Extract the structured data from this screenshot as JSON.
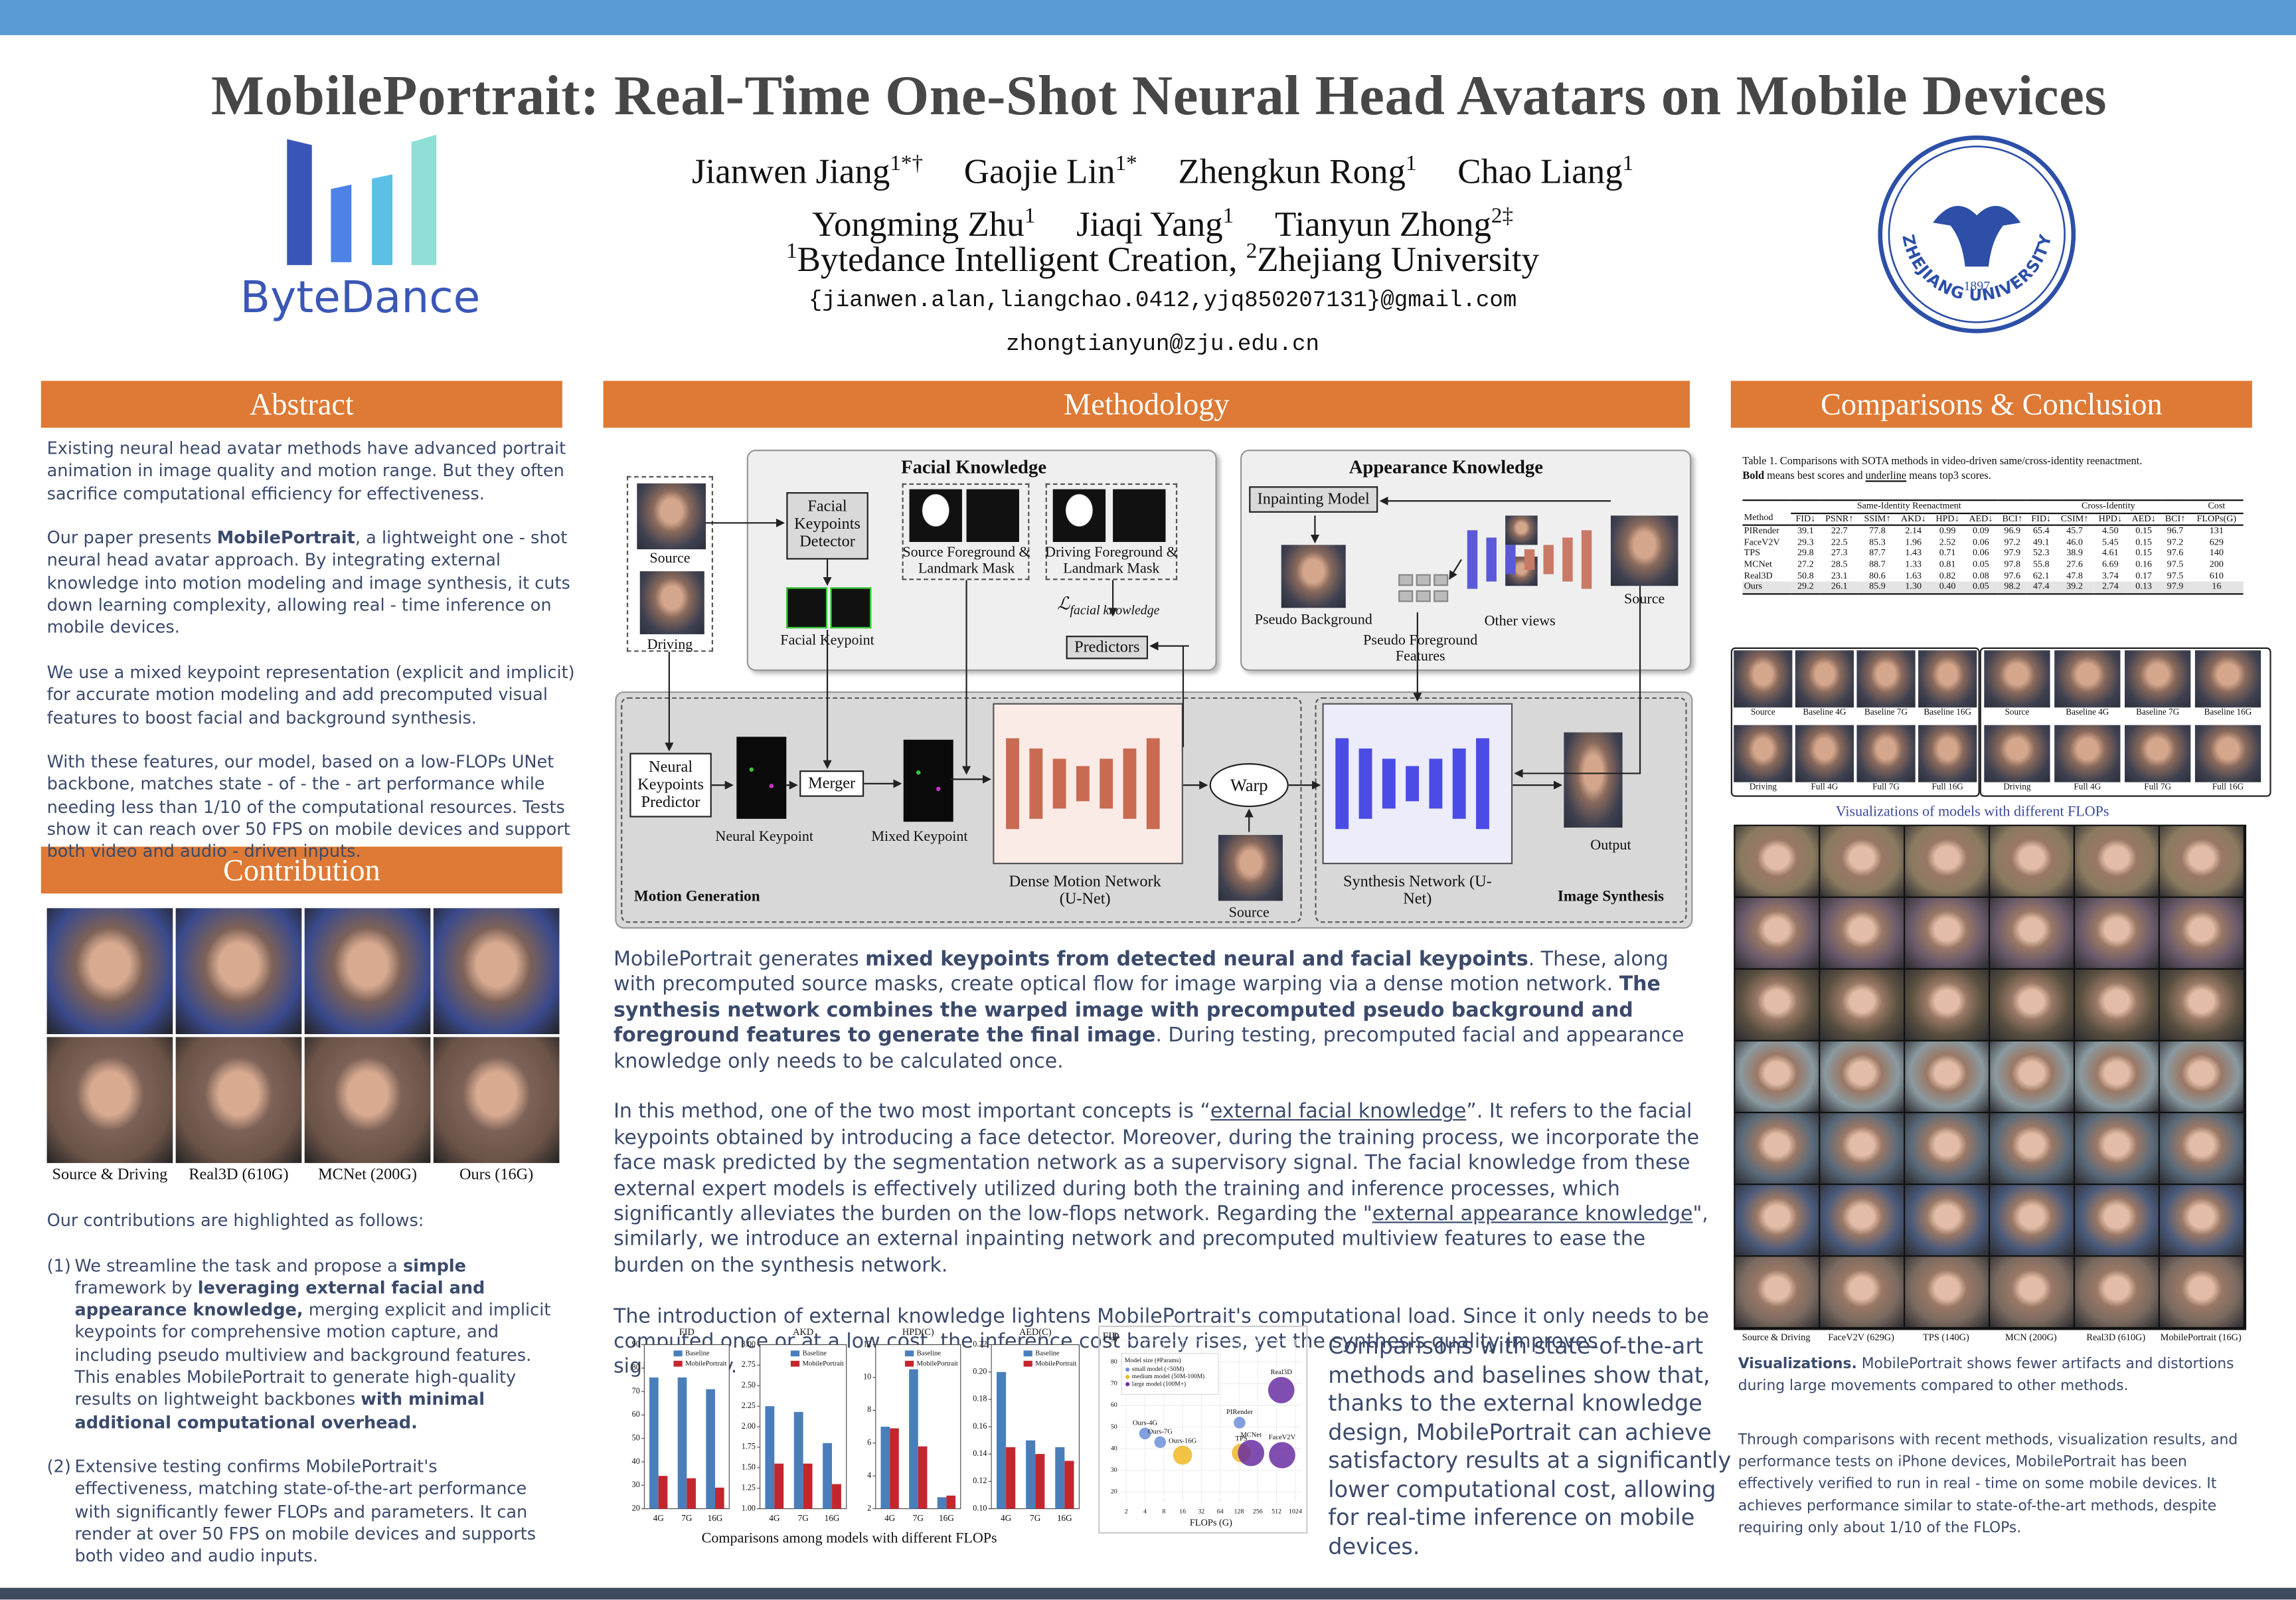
{
  "header": {
    "title": "MobilePortrait: Real-Time One-Shot Neural Head Avatars on Mobile Devices",
    "author_lines": [
      [
        {
          "name": "Jianwen Jiang",
          "sup": "1*†"
        },
        {
          "name": "Gaojie Lin",
          "sup": "1*"
        },
        {
          "name": "Zhengkun Rong",
          "sup": "1"
        },
        {
          "name": "Chao Liang",
          "sup": "1"
        }
      ],
      [
        {
          "name": "Yongming Zhu",
          "sup": "1"
        },
        {
          "name": "Jiaqi Yang",
          "sup": "1"
        },
        {
          "name": "Tianyun Zhong",
          "sup": "2‡"
        }
      ]
    ],
    "affiliations": [
      {
        "sup": "1",
        "text": "Bytedance Intelligent Creation,"
      },
      {
        "sup": "2",
        "text": "Zhejiang University"
      }
    ],
    "emails": [
      "{jianwen.alan,liangchao.0412,yjq850207131}@gmail.com",
      "zhongtianyun@zju.edu.cn"
    ]
  },
  "logos": {
    "bytedance": "ByteDance",
    "zju_year": "1897",
    "zju_name": "ZHEJIANG UNIVERSITY"
  },
  "abstract": {
    "heading": "Abstract",
    "paragraphs": [
      [
        "Existing neural head avatar methods have advanced portrait animation in image quality and motion range. But they often sacrifice computational efficiency for effectiveness."
      ],
      [
        "Our paper presents ",
        {
          "bold": "MobilePortrait"
        },
        ", a lightweight one - shot neural head avatar approach. By integrating external knowledge into motion modeling and image synthesis, it cuts down learning complexity, allowing real - time inference on mobile devices."
      ],
      [
        " We use a mixed keypoint representation (explicit and implicit) for accurate motion modeling and add precomputed visual features to boost facial and background synthesis."
      ],
      [
        "With these features, our model, based on a low-FLOPs UNet backbone, matches state - of - the - art performance while needing less than 1/10 of the computational resources. Tests show it can reach over 50 FPS on mobile devices and support both video and audio - driven inputs."
      ]
    ]
  },
  "contribution": {
    "heading": "Contribution",
    "image_labels": [
      "Source & Driving",
      "Real3D (610G)",
      "MCNet (200G)",
      "Ours (16G)"
    ],
    "intro": "Our contributions are highlighted as follows:",
    "items": [
      {
        "number": "(1)",
        "runs": [
          "We streamline the task and propose a ",
          {
            "bold": "simple"
          },
          " framework by ",
          {
            "bold": "leveraging external facial and appearance knowledge,"
          },
          " merging explicit and implicit keypoints for comprehensive motion capture, and including pseudo multiview and background features. This enables MobilePortrait to generate high-quality results on lightweight backbones ",
          {
            "bold": "with minimal additional computational overhead."
          }
        ]
      },
      {
        "number": "(2)",
        "runs": [
          "Extensive testing confirms MobilePortrait's effectiveness, matching state-of-the-art performance with significantly fewer FLOPs and parameters. It can render at over 50 FPS on mobile devices and supports both video and audio inputs."
        ]
      }
    ]
  },
  "methodology": {
    "heading": "Methodology",
    "diagram": {
      "facial_knowledge": "Facial Knowledge",
      "appearance_knowledge": "Appearance Knowledge",
      "source": "Source",
      "driving": "Driving",
      "facial_keypoints_detector": "Facial Keypoints Detector",
      "source_mask": "Source Foreground & Landmark Mask",
      "driving_mask": "Driving Foreground & Landmark Mask",
      "facial_keypoint": "Facial Keypoint",
      "loss": "ℒ",
      "loss_sub": "facial knowledge",
      "predictors": "Predictors",
      "inpainting_model": "Inpainting Model",
      "pseudo_background": "Pseudo Background",
      "pseudo_foreground": "Pseudo Foreground Features",
      "other_views": "Other views",
      "appearance_source": "Source",
      "neural_keypoints_predictor": "Neural Keypoints Predictor",
      "neural_keypoint": "Neural Keypoint",
      "merger": "Merger",
      "mixed_keypoint": "Mixed Keypoint",
      "dense_motion_network": "Dense Motion Network (U-Net)",
      "warp": "Warp",
      "warp_source": "Source",
      "synthesis_network": "Synthesis Network (U-Net)",
      "output": "Output",
      "motion_generation": "Motion Generation",
      "image_synthesis": "Image Synthesis"
    },
    "paragraphs": [
      [
        "MobilePortrait generates ",
        {
          "bold": "mixed keypoints from detected neural and facial keypoints"
        },
        ". These, along with precomputed source masks, create optical flow for image warping via a dense motion network. ",
        {
          "bold": "The synthesis network combines the warped image with precomputed pseudo background and foreground features to generate the final image"
        },
        ". During testing, precomputed facial and appearance knowledge only needs to be calculated once."
      ],
      [
        "In this method, one of the two most important concepts is “",
        {
          "underline": "external facial knowledge"
        },
        "”. It refers to the facial keypoints obtained by introducing a face detector. Moreover, during the training process, we incorporate the face mask predicted by the segmentation network as a supervisory signal. The facial knowledge from these external expert models is effectively utilized during both the training and inference processes, which significantly alleviates the burden on the low-flops network. Regarding the \"",
        {
          "underline": "external appearance knowledge"
        },
        "\", similarly, we introduce an external inpainting network and precomputed multiview features to ease the burden on the synthesis network."
      ],
      [
        "The introduction of external knowledge lightens MobilePortrait's computational load. Since it only needs to be computed once or at a low cost, the inference cost barely rises, yet the synthesis quality improves significantly."
      ]
    ],
    "chart_data": [
      {
        "type": "bar",
        "title": "FID",
        "categories": [
          "4G",
          "7G",
          "16G"
        ],
        "series": [
          {
            "name": "Baseline",
            "color": "#4a7ebb",
            "values": [
              76,
              76,
              71
            ]
          },
          {
            "name": "MobilePortrait",
            "color": "#c4262e",
            "values": [
              34,
              33,
              29
            ]
          }
        ],
        "ylim": [
          20,
          90
        ],
        "yticks": [
          20,
          30,
          40,
          50,
          60,
          70,
          80,
          90
        ]
      },
      {
        "type": "bar",
        "title": "AKD",
        "categories": [
          "4G",
          "7G",
          "16G"
        ],
        "series": [
          {
            "name": "Baseline",
            "color": "#4a7ebb",
            "values": [
              2.25,
              2.18,
              1.8
            ]
          },
          {
            "name": "MobilePortrait",
            "color": "#c4262e",
            "values": [
              1.55,
              1.55,
              1.3
            ]
          }
        ],
        "ylim": [
          1,
          3
        ],
        "yticks": [
          {
            "value": 1,
            "label": "1.00"
          },
          {
            "value": 1.25,
            "label": "1.25"
          },
          {
            "value": 1.5,
            "label": "1.50"
          },
          {
            "value": 1.75,
            "label": "1.75"
          },
          {
            "value": 2,
            "label": "2.00"
          },
          {
            "value": 2.25,
            "label": "2.25"
          },
          {
            "value": 2.5,
            "label": "2.50"
          },
          {
            "value": 2.75,
            "label": "2.75"
          },
          {
            "value": 3,
            "label": "3.00"
          }
        ]
      },
      {
        "type": "bar",
        "title": "HPD(C)",
        "categories": [
          "4G",
          "7G",
          "16G"
        ],
        "series": [
          {
            "name": "Baseline",
            "color": "#4a7ebb",
            "values": [
              7,
              10.5,
              2.7
            ]
          },
          {
            "name": "MobilePortrait",
            "color": "#c4262e",
            "values": [
              6.9,
              5.8,
              2.8
            ]
          }
        ],
        "ylim": [
          2,
          12
        ],
        "yticks": [
          2,
          4,
          6,
          8,
          10,
          12
        ]
      },
      {
        "type": "bar",
        "title": "AED(C)",
        "categories": [
          "4G",
          "7G",
          "16G"
        ],
        "series": [
          {
            "name": "Baseline",
            "color": "#4a7ebb",
            "values": [
              0.2,
              0.15,
              0.145
            ]
          },
          {
            "name": "MobilePortrait",
            "color": "#c4262e",
            "values": [
              0.145,
              0.14,
              0.135
            ]
          }
        ],
        "ylim": [
          0.1,
          0.22
        ],
        "yticks": [
          {
            "value": 0.1,
            "label": "0.10"
          },
          {
            "value": 0.12,
            "label": "0.12"
          },
          {
            "value": 0.14,
            "label": "0.14"
          },
          {
            "value": 0.16,
            "label": "0.16"
          },
          {
            "value": 0.18,
            "label": "0.18"
          },
          {
            "value": 0.2,
            "label": "0.20"
          },
          {
            "value": 0.22,
            "label": "0.22"
          }
        ]
      },
      {
        "type": "scatter",
        "xlabel": "FLOPs (G)",
        "ylabel": "FID",
        "xscale": "log",
        "legend_title": "Model size (#Params)",
        "xlim": [
          1.6,
          1300
        ],
        "xticks": [
          2,
          4,
          8,
          16,
          32,
          64,
          128,
          256,
          512,
          1024
        ],
        "ylim": [
          15,
          90
        ],
        "yticks": [
          20,
          30,
          40,
          50,
          60,
          70,
          80,
          90
        ],
        "series": [
          {
            "name": "small model (<50M)",
            "color": "#6d8fd8",
            "x": [
              4,
              7,
              131
            ],
            "values": [
              47,
              43,
              52
            ],
            "labels": [
              "Ours-4G",
              "Ours-7G",
              "PIRender"
            ]
          },
          {
            "name": "medium model (50M-100M)",
            "color": "#f0b824",
            "x": [
              16,
              140
            ],
            "values": [
              37,
              38
            ],
            "labels": [
              "Ours-16G",
              "TPS"
            ]
          },
          {
            "name": "large model (100M+)",
            "color": "#6a2fa2",
            "x": [
              200,
              629,
              610
            ],
            "values": [
              38,
              37,
              67
            ],
            "labels": [
              "MCNet",
              "FaceV2V",
              "Real3D"
            ]
          }
        ]
      }
    ],
    "charts_caption": "Comparisons among models with different FLOPs",
    "summary": "Comparisons with state-of-the-art methods and baselines show that, thanks to the external knowledge design, MobilePortrait can achieve satisfactory results at a significantly lower computational cost, allowing for real-time inference on mobile devices."
  },
  "comparisons": {
    "heading": "Comparisons & Conclusion",
    "table": {
      "caption": "Table 1.  Comparisons with SOTA methods in video-driven same/cross-identity reenactment.",
      "note": [
        {
          "bold": "Bold"
        },
        " means best scores and ",
        {
          "underline": "underline"
        },
        " means top3 scores."
      ],
      "groups": [
        "Same-Identity Reenactment",
        "Cross-Identity",
        "Cost"
      ],
      "columns": [
        "Method",
        "FID↓",
        "PSNR↑",
        "SSIM↑",
        "AKD↓",
        "HPD↓",
        "AED↓",
        "BCI↑",
        "FID↓",
        "CSIM↑",
        "HPD↓",
        "AED↓",
        "BCI↑",
        "FLOPs(G)"
      ],
      "rows": [
        [
          "PIRender",
          "39.1",
          "22.7",
          "77.8",
          "2.14",
          "0.99",
          "0.09",
          "96.9",
          "65.4",
          "45.7",
          "4.50",
          "0.15",
          "96.7",
          "131"
        ],
        [
          "FaceV2V",
          "29.3",
          "22.5",
          "85.3",
          "1.96",
          "2.52",
          "0.06",
          "97.2",
          "49.1",
          "46.0",
          "5.45",
          "0.15",
          "97.2",
          "629"
        ],
        [
          "TPS",
          "29.8",
          "27.3",
          "87.7",
          "1.43",
          "0.71",
          "0.06",
          "97.9",
          "52.3",
          "38.9",
          "4.61",
          "0.15",
          "97.6",
          "140"
        ],
        [
          "MCNet",
          "27.2",
          "28.5",
          "88.7",
          "1.33",
          "0.81",
          "0.05",
          "97.8",
          "55.8",
          "27.6",
          "6.69",
          "0.16",
          "97.5",
          "200"
        ],
        [
          "Real3D",
          "50.8",
          "23.1",
          "80.6",
          "1.63",
          "0.82",
          "0.08",
          "97.6",
          "62.1",
          "47.8",
          "3.74",
          "0.17",
          "97.5",
          "610"
        ],
        [
          "Ours",
          "29.2",
          "26.1",
          "85.9",
          "1.30",
          "0.40",
          "0.05",
          "98.2",
          "47.4",
          "39.2",
          "2.74",
          "0.13",
          "97.9",
          "16"
        ]
      ]
    },
    "flops_grid": {
      "top_labels": [
        "Source",
        "Baseline 4G",
        "Baseline 7G",
        "Baseline 16G",
        "Source",
        "Baseline 4G",
        "Baseline 7G",
        "Baseline 16G"
      ],
      "bottom_labels": [
        "Driving",
        "Full 4G",
        "Full 7G",
        "Full 16G",
        "Driving",
        "Full 4G",
        "Full 7G",
        "Full 16G"
      ],
      "caption": "Visualizations of models with different FLOPs"
    },
    "visual_labels": [
      "Source & Driving",
      "FaceV2V (629G)",
      "TPS (140G)",
      "MCN (200G)",
      "Real3D (610G)",
      "MobilePortrait (16G)"
    ],
    "visual_caption": [
      {
        "bold": "Visualizations."
      },
      " MobilePortrait shows fewer artifacts and distortions during large movements compared to other methods."
    ],
    "conclusion": "Through comparisons with recent methods, visualization results, and performance tests on iPhone devices, MobilePortrait has been effectively verified to run in real - time on some mobile devices. It achieves performance similar to state-of-the-art methods, despite requiring only about 1/10 of the FLOPs."
  }
}
